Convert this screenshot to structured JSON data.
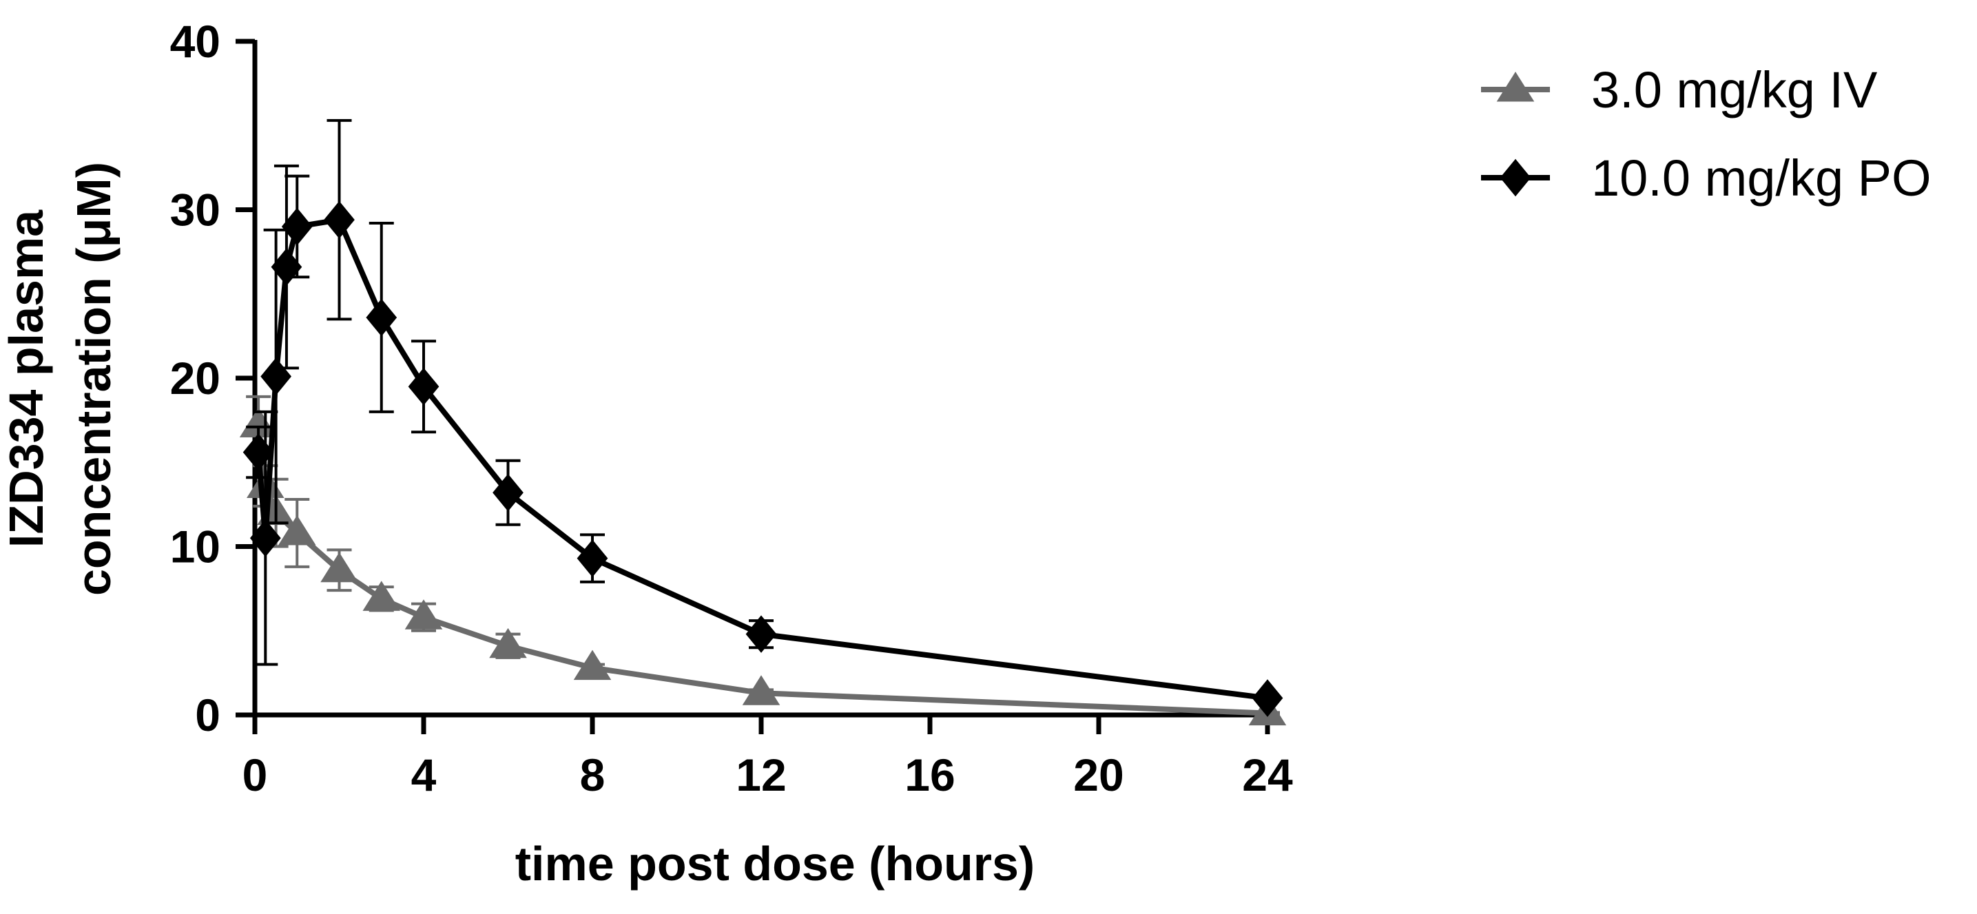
{
  "chart_data": {
    "type": "line",
    "xlabel": "time post dose (hours)",
    "ylabel_lines": [
      "IZD334 plasma",
      "concentration (μM)"
    ],
    "xlim": [
      0,
      24
    ],
    "ylim": [
      0,
      40
    ],
    "x_ticks": [
      0,
      4,
      8,
      12,
      16,
      20,
      24
    ],
    "y_ticks": [
      0,
      10,
      20,
      30,
      40
    ],
    "x_tick_labels": [
      "0",
      "4",
      "8",
      "12",
      "16",
      "20",
      "24"
    ],
    "y_tick_labels": [
      "0",
      "10",
      "20",
      "30",
      "40"
    ],
    "grid": false,
    "legend_position": "top-right",
    "series": [
      {
        "name": "3.0 mg/kg IV",
        "color": "#6b6b6b",
        "marker": "triangle",
        "x": [
          0.083,
          0.25,
          0.5,
          1,
          2,
          3,
          4,
          6,
          8,
          12,
          24
        ],
        "y": [
          17.2,
          13.6,
          12.0,
          10.8,
          8.6,
          6.9,
          5.8,
          4.1,
          2.8,
          1.3,
          0.1
        ],
        "err": [
          1.7,
          1.2,
          2.0,
          2.0,
          1.2,
          0.7,
          0.8,
          0.7,
          0.2,
          0.2,
          0.05
        ]
      },
      {
        "name": "10.0 mg/kg PO",
        "color": "#000000",
        "marker": "diamond",
        "x": [
          0.083,
          0.25,
          0.5,
          0.75,
          1,
          2,
          3,
          4,
          6,
          8,
          12,
          24
        ],
        "y": [
          15.6,
          10.5,
          20.1,
          26.6,
          29.0,
          29.4,
          23.6,
          19.5,
          13.2,
          9.3,
          4.8,
          1.0
        ],
        "err": [
          1.5,
          7.5,
          8.7,
          6.0,
          3.0,
          5.9,
          5.6,
          2.7,
          1.9,
          1.4,
          0.8,
          0.1
        ]
      }
    ]
  }
}
